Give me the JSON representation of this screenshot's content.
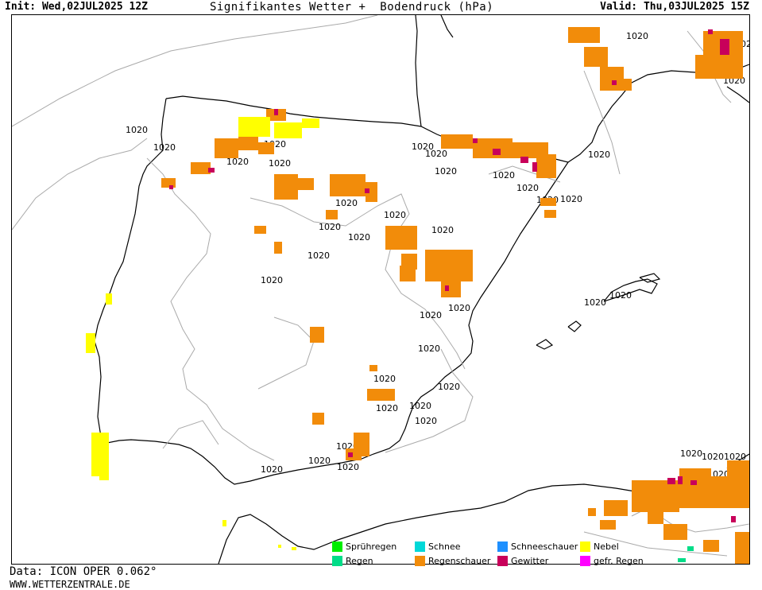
{
  "header": {
    "init": "Init: Wed,02JUL2025 12Z",
    "title": "Signifikantes Wetter +  Bodendruck (hPa)",
    "valid": "Valid: Thu,03JUL2025 15Z"
  },
  "footer": {
    "data_source": "Data: ICON OPER 0.062°",
    "site": "WWW.WETTERZENTRALE.DE"
  },
  "legend": [
    {
      "label": "Sprühregen",
      "color": "#00ee00"
    },
    {
      "label": "Schnee",
      "color": "#00d8d8"
    },
    {
      "label": "Schneeschauer",
      "color": "#1e90ff"
    },
    {
      "label": "Nebel",
      "color": "#ffff00"
    },
    {
      "label": "Regen",
      "color": "#00dd88"
    },
    {
      "label": "Regenschauer",
      "color": "#f28c0a"
    },
    {
      "label": "Gewitter",
      "color": "#c8005a"
    },
    {
      "label": "gefr. Regen",
      "color": "#ff00ff"
    }
  ],
  "map": {
    "isobar_labels": [
      "1020",
      "1020",
      "1020",
      "1020",
      "1020",
      "1020",
      "1020",
      "1020",
      "1020",
      "1020",
      "1020",
      "1020",
      "1020",
      "1020",
      "1020",
      "1020",
      "1020",
      "1020",
      "1020",
      "1020",
      "1020",
      "1020",
      "1020",
      "1020",
      "1020",
      "1020",
      "1020",
      "1020",
      "1020",
      "1020",
      "1020",
      "1020",
      "1020",
      "1020",
      "1020",
      "1020",
      "1020",
      "1020",
      "1020",
      "1020",
      "1020",
      "1020",
      "1020",
      "1020",
      "1020",
      "1020"
    ],
    "isobar_color": "#aaaaaa",
    "coast_color": "#000000"
  }
}
